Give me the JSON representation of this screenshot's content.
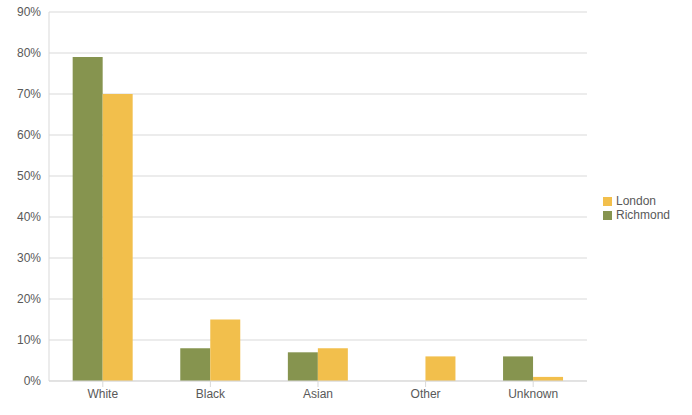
{
  "chart_data": {
    "type": "bar",
    "categories": [
      "White",
      "Black",
      "Asian",
      "Other",
      "Unknown"
    ],
    "series": [
      {
        "name": "Richmond",
        "color": "#86944f",
        "values": [
          79,
          8,
          7,
          0,
          6
        ]
      },
      {
        "name": "London",
        "color": "#f2bf4c",
        "values": [
          70,
          15,
          8,
          6,
          1
        ]
      }
    ],
    "ylim": [
      0,
      90
    ],
    "yticks": [
      {
        "value": 0,
        "label": "0%"
      },
      {
        "value": 10,
        "label": "10%"
      },
      {
        "value": 20,
        "label": "20%"
      },
      {
        "value": 30,
        "label": "30%"
      },
      {
        "value": 40,
        "label": "40%"
      },
      {
        "value": 50,
        "label": "50%"
      },
      {
        "value": 60,
        "label": "60%"
      },
      {
        "value": 70,
        "label": "70%"
      },
      {
        "value": 80,
        "label": "80%"
      },
      {
        "value": 90,
        "label": "90%"
      }
    ],
    "grid": true,
    "legend": "right"
  }
}
